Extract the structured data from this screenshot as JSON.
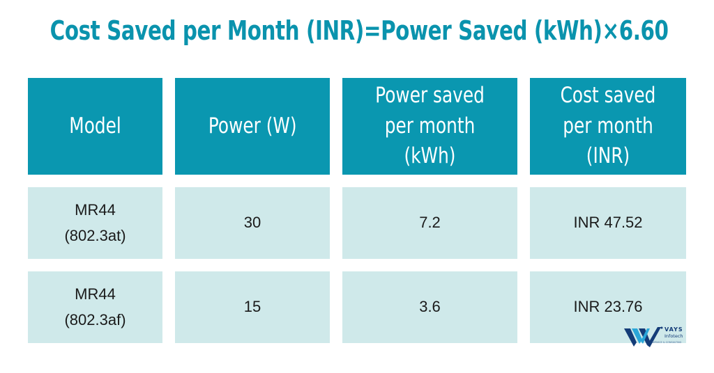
{
  "title": "Cost Saved per Month (INR)=Power Saved (kWh)×6.60",
  "table": {
    "headers": [
      "Model",
      "Power (W)",
      "Power saved per month (kWh)",
      "Cost saved per month (INR)"
    ],
    "rows": [
      {
        "model_line1": "MR44",
        "model_line2": "(802.3at)",
        "power": "30",
        "power_saved": "7.2",
        "cost_saved": "INR 47.52"
      },
      {
        "model_line1": "MR44",
        "model_line2": "(802.3af)",
        "power": "15",
        "power_saved": "3.6",
        "cost_saved": "INR 23.76"
      }
    ]
  },
  "logo": {
    "name": "VAYS",
    "sub": "Infotech",
    "tagline": "SERVICE & CONSULTING",
    "colors": {
      "primary": "#143c78",
      "accent": "#2aa6d8"
    }
  },
  "colors": {
    "title": "#0a93ad",
    "header_bg": "#0a97b0",
    "row_bg": "#cfe9ea"
  }
}
